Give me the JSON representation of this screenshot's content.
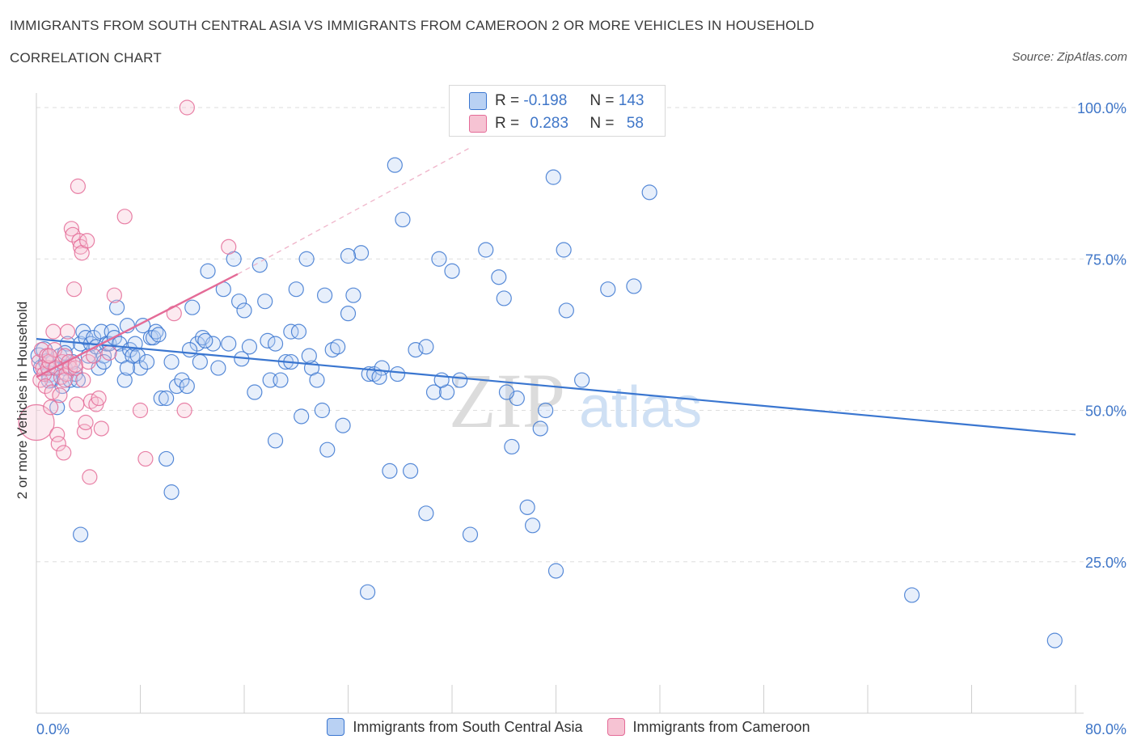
{
  "title": "IMMIGRANTS FROM SOUTH CENTRAL ASIA VS IMMIGRANTS FROM CAMEROON 2 OR MORE VEHICLES IN HOUSEHOLD",
  "subtitle": "CORRELATION CHART",
  "source": "Source: ZipAtlas.com",
  "watermark": {
    "zip": "ZIP",
    "atlas": "atlas"
  },
  "colors": {
    "blue": "#3a76d0",
    "pink": "#e46b97",
    "blue_fill": "#b9d1f3",
    "pink_fill": "#f6c3d3"
  },
  "stats": {
    "r_label": "R =",
    "n_label": "N =",
    "blue": {
      "r": "-0.198",
      "n": "143"
    },
    "pink": {
      "r": "0.283",
      "n": "58"
    }
  },
  "legend": [
    {
      "name": "Immigrants from South Central Asia",
      "color": "blue"
    },
    {
      "name": "Immigrants from Cameroon",
      "color": "pink"
    }
  ],
  "chart_data": {
    "type": "scatter",
    "ylabel": "2 or more Vehicles in Household",
    "xlim": [
      0,
      80
    ],
    "ylim": [
      0,
      100
    ],
    "x_tick_labels": [
      "0.0%",
      "80.0%"
    ],
    "y_ticks": [
      {
        "value": 100,
        "label": "100.0%"
      },
      {
        "value": 75,
        "label": "75.0%"
      },
      {
        "value": 50,
        "label": "50.0%"
      },
      {
        "value": 25,
        "label": "25.0%"
      }
    ],
    "grid": true,
    "series": [
      {
        "name": "Immigrants from South Central Asia",
        "color": "blue",
        "trend": {
          "x0": 0,
          "y0": 61.8,
          "x1": 80,
          "y1": 46.0
        },
        "points": [
          [
            0.2,
            59
          ],
          [
            0.4,
            57
          ],
          [
            0.6,
            60
          ],
          [
            0.8,
            58
          ],
          [
            1.0,
            56
          ],
          [
            1.2,
            55
          ],
          [
            1.4,
            57
          ],
          [
            1.6,
            50.5
          ],
          [
            1.8,
            59
          ],
          [
            2.0,
            54
          ],
          [
            2.2,
            57
          ],
          [
            2.4,
            61
          ],
          [
            2.6,
            55
          ],
          [
            2.8,
            58
          ],
          [
            3.0,
            56
          ],
          [
            3.2,
            55
          ],
          [
            3.4,
            61
          ],
          [
            3.6,
            63
          ],
          [
            3.8,
            62
          ],
          [
            4.0,
            59
          ],
          [
            4.2,
            61
          ],
          [
            4.4,
            62
          ],
          [
            4.6,
            60.5
          ],
          [
            4.8,
            57
          ],
          [
            5.0,
            63
          ],
          [
            5.2,
            59
          ],
          [
            5.4,
            61
          ],
          [
            5.6,
            61
          ],
          [
            5.8,
            63
          ],
          [
            6.0,
            62
          ],
          [
            6.2,
            67
          ],
          [
            6.4,
            61
          ],
          [
            6.6,
            59
          ],
          [
            6.8,
            55
          ],
          [
            7.0,
            64
          ],
          [
            7.2,
            60
          ],
          [
            7.4,
            59
          ],
          [
            7.6,
            61
          ],
          [
            7.8,
            59
          ],
          [
            8.0,
            57
          ],
          [
            8.2,
            64
          ],
          [
            8.5,
            58
          ],
          [
            8.8,
            62
          ],
          [
            9.0,
            62
          ],
          [
            9.2,
            63
          ],
          [
            9.6,
            52
          ],
          [
            10.0,
            52
          ],
          [
            10.4,
            58
          ],
          [
            10.8,
            54
          ],
          [
            11.2,
            55
          ],
          [
            11.6,
            54
          ],
          [
            12.0,
            67
          ],
          [
            12.4,
            61
          ],
          [
            12.8,
            62
          ],
          [
            13.2,
            73
          ],
          [
            13.6,
            61
          ],
          [
            14.0,
            57
          ],
          [
            14.4,
            70
          ],
          [
            14.8,
            61
          ],
          [
            15.2,
            75
          ],
          [
            15.6,
            68
          ],
          [
            16.0,
            66.5
          ],
          [
            16.4,
            60.5
          ],
          [
            16.8,
            53
          ],
          [
            17.2,
            74
          ],
          [
            17.6,
            68
          ],
          [
            18.0,
            55
          ],
          [
            18.4,
            45
          ],
          [
            18.8,
            55
          ],
          [
            19.2,
            58
          ],
          [
            19.6,
            63
          ],
          [
            20.0,
            70
          ],
          [
            20.4,
            49
          ],
          [
            20.8,
            75
          ],
          [
            21.2,
            57
          ],
          [
            21.6,
            55
          ],
          [
            22.0,
            50
          ],
          [
            22.4,
            43.5
          ],
          [
            22.8,
            60
          ],
          [
            23.2,
            60.5
          ],
          [
            23.6,
            47.5
          ],
          [
            24.0,
            66
          ],
          [
            24.4,
            69
          ],
          [
            25.0,
            76
          ],
          [
            25.6,
            56
          ],
          [
            26.0,
            56
          ],
          [
            26.6,
            57
          ],
          [
            27.2,
            40
          ],
          [
            27.6,
            90.5
          ],
          [
            28.2,
            81.5
          ],
          [
            28.8,
            40
          ],
          [
            29.2,
            60
          ],
          [
            30.0,
            33
          ],
          [
            30.6,
            53
          ],
          [
            31.0,
            75
          ],
          [
            31.6,
            53
          ],
          [
            32.0,
            73
          ],
          [
            32.6,
            55
          ],
          [
            33.4,
            29.5
          ],
          [
            34.6,
            76.5
          ],
          [
            35.6,
            72
          ],
          [
            36.0,
            68.5
          ],
          [
            36.6,
            44
          ],
          [
            37.8,
            34
          ],
          [
            38.2,
            31
          ],
          [
            38.8,
            47
          ],
          [
            39.2,
            50
          ],
          [
            39.8,
            88.5
          ],
          [
            40.0,
            23.5
          ],
          [
            40.6,
            76.5
          ],
          [
            40.8,
            66.5
          ],
          [
            42.0,
            55
          ],
          [
            44.0,
            70
          ],
          [
            46.0,
            70.5
          ],
          [
            47.2,
            86
          ],
          [
            25.5,
            20
          ],
          [
            67.4,
            19.5
          ],
          [
            78.4,
            12
          ],
          [
            3.4,
            29.5
          ],
          [
            10.4,
            36.5
          ],
          [
            10.0,
            42
          ],
          [
            1.0,
            55
          ],
          [
            2.2,
            59.5
          ],
          [
            24.0,
            75.5
          ],
          [
            30.0,
            60.5
          ],
          [
            13.0,
            61.5
          ],
          [
            15.8,
            58.5
          ],
          [
            9.4,
            62.5
          ],
          [
            11.8,
            60
          ],
          [
            17.8,
            61.5
          ],
          [
            20.2,
            63
          ],
          [
            22.2,
            69
          ],
          [
            26.4,
            55.5
          ],
          [
            31.2,
            55
          ],
          [
            37.0,
            52
          ],
          [
            36.2,
            53
          ],
          [
            5.2,
            58
          ],
          [
            7.0,
            57
          ],
          [
            12.6,
            58
          ],
          [
            18.4,
            61
          ],
          [
            21.0,
            59
          ],
          [
            27.8,
            56
          ],
          [
            19.6,
            58
          ]
        ]
      },
      {
        "name": "Immigrants from Cameroon",
        "color": "pink",
        "trend": {
          "x0": 0,
          "y0": 55.5,
          "x1": 15.5,
          "y1": 72.5,
          "ext_x1": 33.5,
          "ext_y1": 93.5
        },
        "points": [
          [
            0.0,
            48
          ],
          [
            0.2,
            58
          ],
          [
            0.3,
            55
          ],
          [
            0.4,
            60
          ],
          [
            0.5,
            57
          ],
          [
            0.6,
            56
          ],
          [
            0.7,
            54
          ],
          [
            0.8,
            59
          ],
          [
            0.9,
            57
          ],
          [
            1.0,
            58
          ],
          [
            1.1,
            50.5
          ],
          [
            1.2,
            53
          ],
          [
            1.3,
            63
          ],
          [
            1.4,
            60
          ],
          [
            1.5,
            57
          ],
          [
            1.6,
            46
          ],
          [
            1.7,
            44.5
          ],
          [
            1.8,
            52.5
          ],
          [
            1.9,
            55.5
          ],
          [
            2.0,
            58
          ],
          [
            2.1,
            43
          ],
          [
            2.2,
            59
          ],
          [
            2.3,
            56
          ],
          [
            2.4,
            63
          ],
          [
            2.5,
            58
          ],
          [
            2.6,
            57
          ],
          [
            2.7,
            80
          ],
          [
            2.8,
            79
          ],
          [
            2.9,
            70
          ],
          [
            3.0,
            57
          ],
          [
            3.1,
            51
          ],
          [
            3.2,
            87
          ],
          [
            3.3,
            78
          ],
          [
            3.4,
            77
          ],
          [
            3.5,
            76
          ],
          [
            3.6,
            55
          ],
          [
            3.7,
            46.5
          ],
          [
            3.8,
            48
          ],
          [
            3.9,
            78
          ],
          [
            4.0,
            58
          ],
          [
            4.1,
            39
          ],
          [
            4.2,
            51.5
          ],
          [
            4.4,
            59
          ],
          [
            4.6,
            51
          ],
          [
            4.8,
            52
          ],
          [
            5.0,
            47
          ],
          [
            5.6,
            59.5
          ],
          [
            6.0,
            69
          ],
          [
            6.8,
            82
          ],
          [
            8.0,
            50
          ],
          [
            8.4,
            42
          ],
          [
            10.6,
            66
          ],
          [
            11.4,
            50
          ],
          [
            11.6,
            100
          ],
          [
            14.8,
            77
          ],
          [
            1.0,
            59
          ],
          [
            2.2,
            55
          ],
          [
            3.0,
            57.5
          ]
        ]
      }
    ]
  }
}
